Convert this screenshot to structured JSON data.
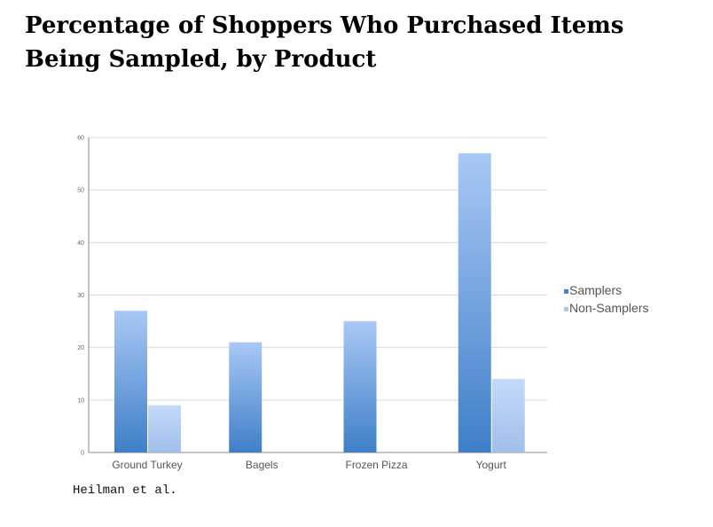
{
  "title": "Percentage of Shoppers Who Purchased Items Being Sampled, by Product",
  "source": "Heilman et al.",
  "chart_data": {
    "type": "bar",
    "categories": [
      "Ground Turkey",
      "Bagels",
      "Frozen Pizza",
      "Yogurt"
    ],
    "series": [
      {
        "name": "Samplers",
        "values": [
          27,
          21,
          25,
          57
        ]
      },
      {
        "name": "Non-Samplers",
        "values": [
          9,
          null,
          null,
          14
        ]
      }
    ],
    "ylim": [
      0,
      60
    ],
    "yticks": [
      0,
      10,
      20,
      30,
      40,
      50,
      60
    ],
    "grid": true,
    "legend": "right",
    "colors": {
      "samplers_top": "#a9c8f5",
      "samplers_bottom": "#3f7fc8",
      "nonsamplers_top": "#c5dafa",
      "nonsamplers_bottom": "#a0bfeb",
      "legend_samplers": "#4a85cf",
      "legend_nonsamplers": "#a9c8f2",
      "grid": "#d9d9d9",
      "axis": "#888888"
    }
  }
}
